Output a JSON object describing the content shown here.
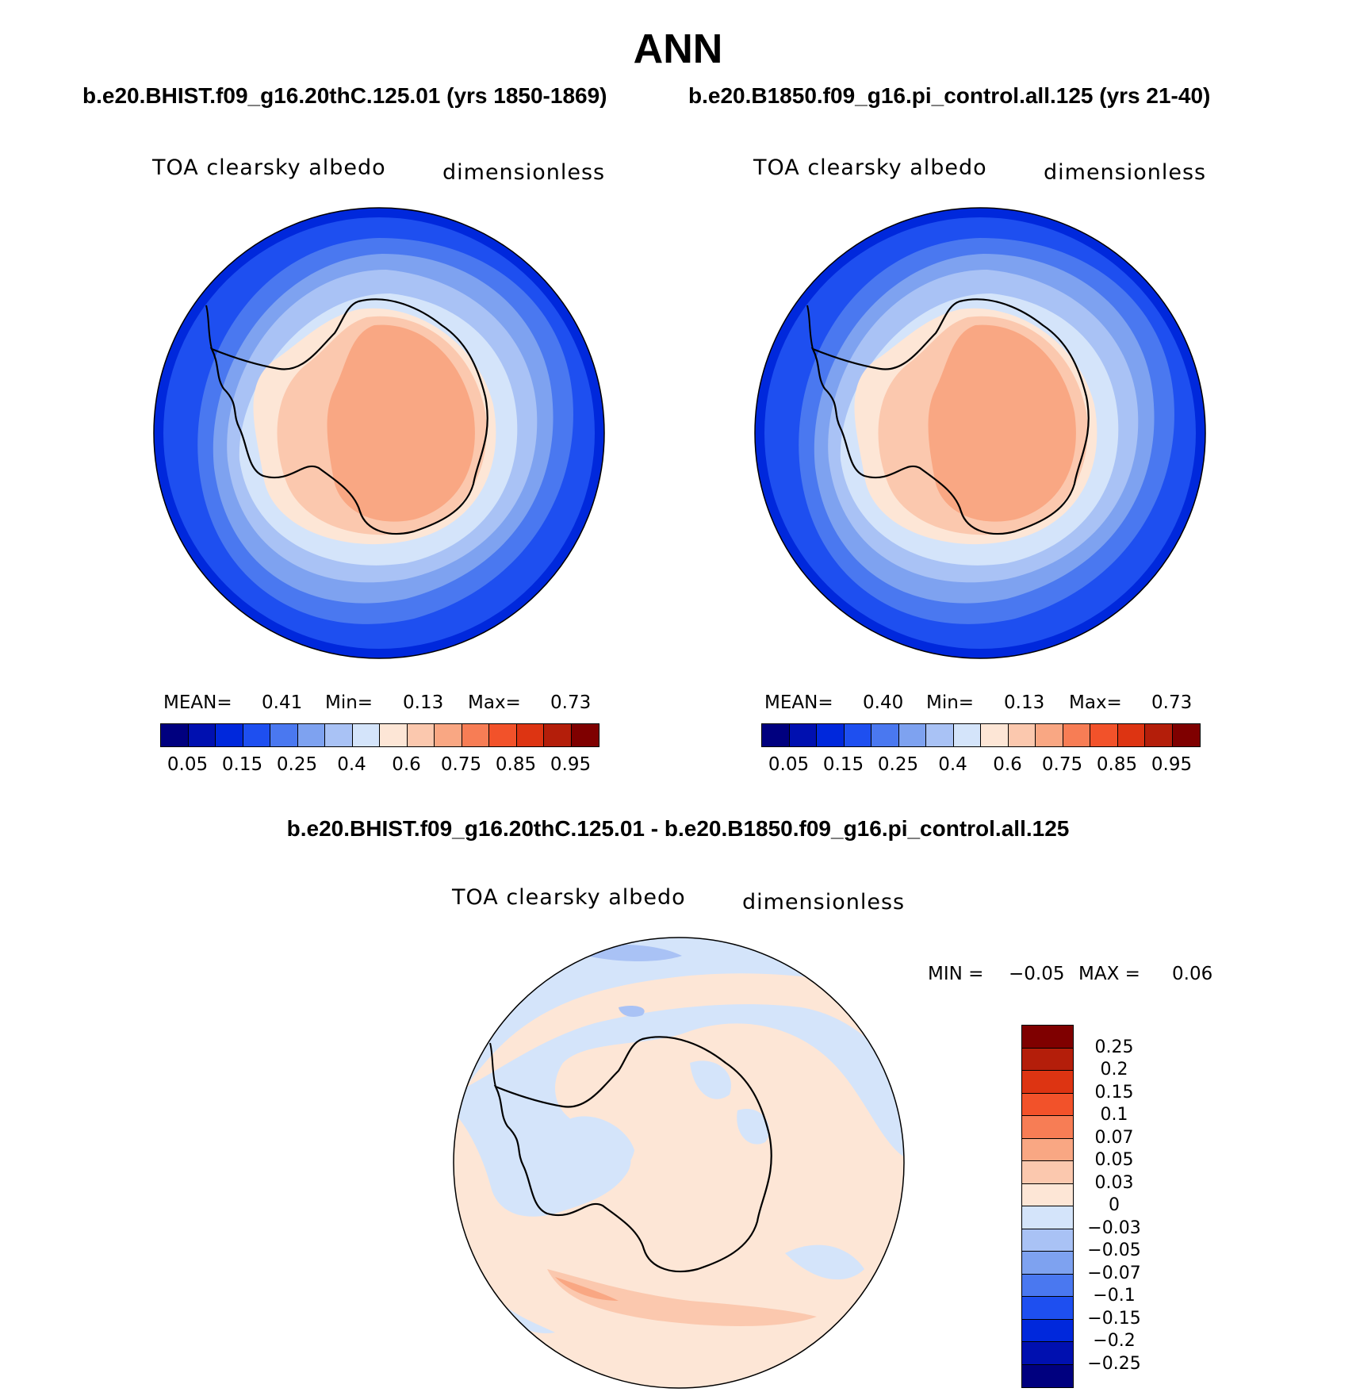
{
  "header": {
    "title": "ANN",
    "subtitle_left": "b.e20.BHIST.f09_g16.20thC.125.01 (yrs 1850-1869)",
    "subtitle_right": "b.e20.B1850.f09_g16.pi_control.all.125 (yrs 21-40)",
    "diff_title": "b.e20.BHIST.f09_g16.20thC.125.01 - b.e20.B1850.f09_g16.pi_control.all.125"
  },
  "panels": [
    {
      "variable": "TOA clearsky albedo",
      "units": "dimensionless",
      "stats": {
        "mean_label": "MEAN=",
        "mean": "0.41",
        "min_label": "Min=",
        "min": "0.13",
        "max_label": "Max=",
        "max": "0.73"
      }
    },
    {
      "variable": "TOA clearsky albedo",
      "units": "dimensionless",
      "stats": {
        "mean_label": "MEAN=",
        "mean": "0.40",
        "min_label": "Min=",
        "min": "0.13",
        "max_label": "Max=",
        "max": "0.73"
      }
    },
    {
      "variable": "TOA clearsky albedo",
      "units": "dimensionless",
      "stats": {
        "min_label": "MIN =",
        "min": "−0.05",
        "max_label": "MAX =",
        "max": "0.06"
      }
    }
  ],
  "colorbar_abs": {
    "colors": [
      "#00007f",
      "#0010b0",
      "#0028dc",
      "#1e4ff0",
      "#4a78f0",
      "#7ea2f0",
      "#a9c2f5",
      "#d4e4fa",
      "#fde6d6",
      "#fbc8ae",
      "#f9a783",
      "#f77d55",
      "#f2522a",
      "#dd3412",
      "#b41e0a",
      "#7f0000"
    ],
    "ticks": [
      "0.05",
      "0.15",
      "0.25",
      "0.4",
      "0.6",
      "0.75",
      "0.85",
      "0.95"
    ]
  },
  "colorbar_diff": {
    "colors": [
      "#7f0000",
      "#b41e0a",
      "#dd3412",
      "#f2522a",
      "#f77d55",
      "#f9a783",
      "#fbc8ae",
      "#fde6d6",
      "#d4e4fa",
      "#a9c2f5",
      "#7ea2f0",
      "#4a78f0",
      "#1e4ff0",
      "#0028dc",
      "#0010b0",
      "#00007f"
    ],
    "ticks": [
      "0.25",
      "0.2",
      "0.15",
      "0.1",
      "0.07",
      "0.05",
      "0.03",
      "0",
      "−0.03",
      "−0.05",
      "−0.07",
      "−0.1",
      "−0.15",
      "−0.2",
      "−0.25"
    ]
  }
}
